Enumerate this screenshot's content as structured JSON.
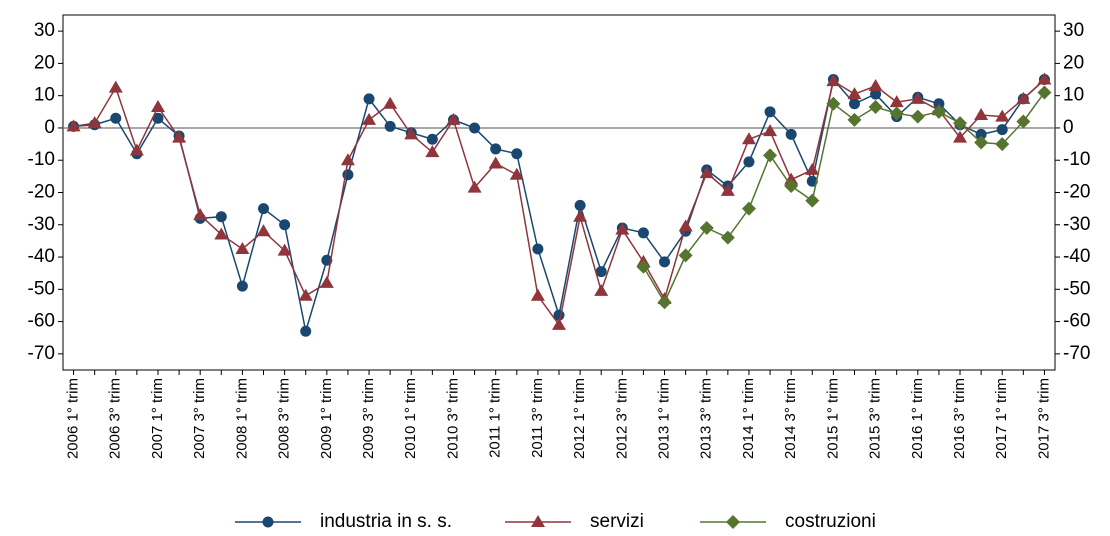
{
  "chart_data": {
    "type": "line",
    "categories": [
      "2006 1° trim",
      null,
      "2006 3° trim",
      null,
      "2007 1° trim",
      null,
      "2007 3° trim",
      null,
      "2008 1° trim",
      null,
      "2008 3° trim",
      null,
      "2009 1° trim",
      null,
      "2009 3° trim",
      null,
      "2010 1° trim",
      null,
      "2010 3° trim",
      null,
      "2011 1° trim",
      null,
      "2011 3° trim",
      null,
      "2012 1° trim",
      null,
      "2012 3° trim",
      null,
      "2013 1° trim",
      null,
      "2013 3° trim",
      null,
      "2014 1° trim",
      null,
      "2014 3° trim",
      null,
      "2015 1° trim",
      null,
      "2015 3° trim",
      null,
      "2016 1° trim",
      null,
      "2016 3° trim",
      null,
      "2017 1° trim",
      null,
      "2017 3° trim"
    ],
    "series": [
      {
        "name": "industria in s. s.",
        "color": "#1a476f",
        "marker": "circle",
        "values": [
          0.5,
          1,
          3,
          -8,
          3,
          -2.5,
          -28,
          -27.5,
          -49,
          -25,
          -30,
          -63,
          -41,
          -14.5,
          9,
          0.5,
          -1.5,
          -3.5,
          2.5,
          0,
          -6.5,
          -8,
          -37.5,
          -58,
          -24,
          -44.5,
          -31,
          -32.5,
          -41.5,
          -32,
          -13,
          -18,
          -10.5,
          5,
          -2,
          -16.5,
          15,
          7.5,
          10.5,
          3.5,
          9.5,
          7.5,
          1,
          -2,
          -0.5,
          9,
          15
        ]
      },
      {
        "name": "servizi",
        "color": "#90353b",
        "marker": "triangle",
        "values": [
          0.5,
          1.5,
          12.5,
          -7,
          6.5,
          -3,
          -27,
          -33,
          -37.5,
          -32,
          -38,
          -52,
          -48,
          -10,
          2.5,
          7.5,
          -2,
          -7.5,
          2.5,
          -18.5,
          -11,
          -14.5,
          -52,
          -61,
          -27.5,
          -50.5,
          -31.5,
          -41.5,
          -53,
          -30.5,
          -14,
          -19.5,
          -3.5,
          -1,
          -16,
          -13,
          14.5,
          10.5,
          13,
          8,
          9,
          5.5,
          -3,
          4,
          3.5,
          9,
          15
        ]
      },
      {
        "name": "costruzioni",
        "color": "#55752f",
        "marker": "diamond",
        "values": [
          null,
          null,
          null,
          null,
          null,
          null,
          null,
          null,
          null,
          null,
          null,
          null,
          null,
          null,
          null,
          null,
          null,
          null,
          null,
          null,
          null,
          null,
          null,
          null,
          null,
          null,
          null,
          -43,
          -54,
          -39.5,
          -31,
          -34,
          -25,
          -8.5,
          -18,
          -22.5,
          7.5,
          2.5,
          6.5,
          4.5,
          3.5,
          5,
          1.5,
          -4.5,
          -5,
          2,
          11
        ]
      }
    ],
    "ylim": [
      -75,
      35
    ],
    "yticks": [
      -70,
      -60,
      -50,
      -40,
      -30,
      -20,
      -10,
      0,
      10,
      20,
      30
    ],
    "y2lim": [
      -75,
      35
    ],
    "y2ticks": [
      -70,
      -60,
      -50,
      -40,
      -30,
      -20,
      -10,
      0,
      10,
      20,
      30
    ],
    "zero_line": true
  }
}
